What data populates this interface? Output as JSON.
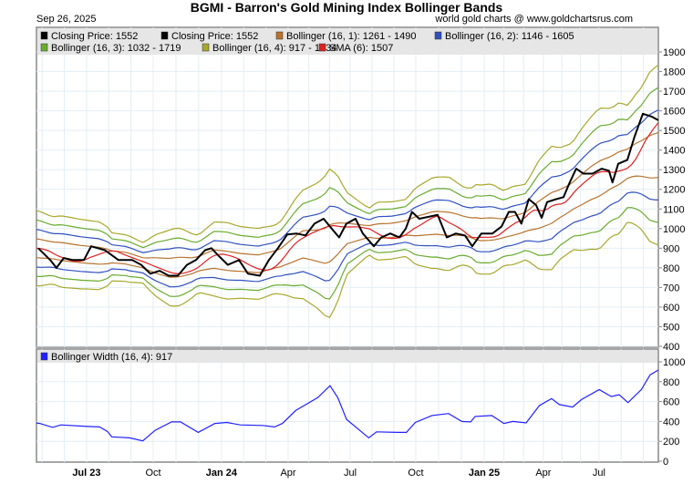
{
  "title": "BGMI - Barron's Gold Mining Index Bollinger Bands",
  "date": "Sep 26, 2025",
  "credit": "world gold charts @ www.goldchartsrus.com",
  "chart_data": [
    {
      "type": "line",
      "title": "BGMI - Barron's Gold Mining Index Bollinger Bands",
      "x_unit": "months since May 2023",
      "xlim": [
        0,
        28.07
      ],
      "ylim": [
        400,
        1950
      ],
      "yticks": [
        400,
        500,
        600,
        700,
        800,
        900,
        1000,
        1100,
        1200,
        1300,
        1400,
        1500,
        1600,
        1700,
        1800,
        1900
      ],
      "xticks": [
        {
          "label": "Jul 23",
          "t": 2.26,
          "bold": true
        },
        {
          "label": "Oct",
          "t": 5.27,
          "bold": false
        },
        {
          "label": "Jan 24",
          "t": 8.35,
          "bold": true
        },
        {
          "label": "Apr",
          "t": 11.36,
          "bold": false
        },
        {
          "label": "Jul",
          "t": 14.16,
          "bold": false
        },
        {
          "label": "Oct",
          "t": 17.12,
          "bold": false
        },
        {
          "label": "Jan 25",
          "t": 20.21,
          "bold": true
        },
        {
          "label": "Apr",
          "t": 22.88,
          "bold": false
        },
        {
          "label": "Jul",
          "t": 25.39,
          "bold": false
        }
      ],
      "legend": [
        {
          "label": "Closing Price: 1552",
          "color": "#000000"
        },
        {
          "label": "Closing Price: 1552",
          "color": "#000000"
        },
        {
          "label": "Bollinger (16, 1): 1261 - 1490",
          "color": "#b8732e",
          "k": 1
        },
        {
          "label": "Bollinger (16, 2): 1146 - 1605",
          "color": "#3050c0",
          "k": 2
        },
        {
          "label": "Bollinger (16, 3): 1032 - 1719",
          "color": "#6aab2e",
          "k": 3
        },
        {
          "label": "Bollinger (16, 4): 917 - 1834",
          "color": "#a8a82c",
          "k": 4
        },
        {
          "label": "SMA (6): 1507",
          "color": "#e02020"
        }
      ],
      "closing_price": [
        [
          0.08,
          900
        ],
        [
          0.62,
          840
        ],
        [
          0.9,
          800
        ],
        [
          1.23,
          850
        ],
        [
          1.65,
          840
        ],
        [
          2.14,
          840
        ],
        [
          2.47,
          910
        ],
        [
          3.09,
          890
        ],
        [
          3.7,
          840
        ],
        [
          4.32,
          840
        ],
        [
          4.73,
          815
        ],
        [
          5.14,
          770
        ],
        [
          5.56,
          785
        ],
        [
          5.97,
          760
        ],
        [
          6.38,
          760
        ],
        [
          6.79,
          815
        ],
        [
          7.2,
          840
        ],
        [
          7.61,
          890
        ],
        [
          7.9,
          900
        ],
        [
          8.23,
          860
        ],
        [
          8.64,
          815
        ],
        [
          9.14,
          840
        ],
        [
          9.55,
          770
        ],
        [
          10.08,
          760
        ],
        [
          10.49,
          840
        ],
        [
          10.9,
          900
        ],
        [
          11.32,
          970
        ],
        [
          11.73,
          975
        ],
        [
          12.14,
          965
        ],
        [
          12.55,
          1025
        ],
        [
          12.96,
          1050
        ],
        [
          13.25,
          1010
        ],
        [
          13.66,
          955
        ],
        [
          13.99,
          1025
        ],
        [
          14.4,
          1050
        ],
        [
          14.73,
          975
        ],
        [
          15.23,
          910
        ],
        [
          15.56,
          955
        ],
        [
          15.97,
          975
        ],
        [
          16.38,
          955
        ],
        [
          16.67,
          1000
        ],
        [
          16.95,
          1085
        ],
        [
          17.28,
          1050
        ],
        [
          17.7,
          1060
        ],
        [
          18.11,
          1070
        ],
        [
          18.52,
          955
        ],
        [
          18.93,
          975
        ],
        [
          19.34,
          965
        ],
        [
          19.67,
          910
        ],
        [
          20.08,
          975
        ],
        [
          20.58,
          975
        ],
        [
          20.99,
          1010
        ],
        [
          21.32,
          1085
        ],
        [
          21.6,
          1085
        ],
        [
          21.89,
          1025
        ],
        [
          22.22,
          1150
        ],
        [
          22.55,
          1120
        ],
        [
          22.8,
          1055
        ],
        [
          23.05,
          1135
        ],
        [
          23.46,
          1150
        ],
        [
          23.79,
          1160
        ],
        [
          24.07,
          1235
        ],
        [
          24.36,
          1305
        ],
        [
          24.69,
          1280
        ],
        [
          25.1,
          1280
        ],
        [
          25.51,
          1305
        ],
        [
          25.84,
          1295
        ],
        [
          26.0,
          1235
        ],
        [
          26.26,
          1330
        ],
        [
          26.67,
          1350
        ],
        [
          27.0,
          1470
        ],
        [
          27.37,
          1585
        ],
        [
          27.78,
          1570
        ],
        [
          28.07,
          1552
        ]
      ],
      "bollinger_mid": [
        [
          0,
          900
        ],
        [
          2,
          870
        ],
        [
          4,
          850
        ],
        [
          5,
          820
        ],
        [
          6,
          800
        ],
        [
          7,
          810
        ],
        [
          8,
          845
        ],
        [
          9,
          830
        ],
        [
          10,
          820
        ],
        [
          11,
          850
        ],
        [
          12,
          920
        ],
        [
          13,
          910
        ],
        [
          14,
          975
        ],
        [
          15,
          985
        ],
        [
          16,
          990
        ],
        [
          17,
          1010
        ],
        [
          18,
          1030
        ],
        [
          19,
          1020
        ],
        [
          20,
          995
        ],
        [
          21,
          1000
        ],
        [
          22,
          1030
        ],
        [
          23,
          1090
        ],
        [
          24,
          1150
        ],
        [
          25,
          1230
        ],
        [
          26,
          1290
        ],
        [
          27,
          1350
        ],
        [
          28.07,
          1375
        ]
      ]
    },
    {
      "type": "line",
      "title": "Bollinger Width (16, 4): 917",
      "legend": [
        {
          "label": "Bollinger Width (16, 4): 917",
          "color": "#2020ff"
        }
      ],
      "ylim": [
        0,
        1000
      ],
      "yticks": [
        0,
        200,
        400,
        600,
        800,
        1000
      ],
      "values": [
        [
          0,
          385
        ],
        [
          0.15,
          380
        ],
        [
          0.73,
          340
        ],
        [
          1.1,
          365
        ],
        [
          2.3,
          350
        ],
        [
          2.85,
          345
        ],
        [
          3.2,
          300
        ],
        [
          3.4,
          245
        ],
        [
          4.2,
          235
        ],
        [
          4.8,
          205
        ],
        [
          5.35,
          310
        ],
        [
          6.1,
          395
        ],
        [
          6.5,
          395
        ],
        [
          7.3,
          290
        ],
        [
          8.05,
          380
        ],
        [
          8.6,
          390
        ],
        [
          9.2,
          365
        ],
        [
          10.2,
          360
        ],
        [
          10.75,
          345
        ],
        [
          11.1,
          380
        ],
        [
          11.7,
          510
        ],
        [
          12.7,
          640
        ],
        [
          13.25,
          760
        ],
        [
          13.6,
          640
        ],
        [
          14.0,
          420
        ],
        [
          15.0,
          235
        ],
        [
          15.35,
          295
        ],
        [
          16.3,
          290
        ],
        [
          16.7,
          290
        ],
        [
          17.1,
          390
        ],
        [
          17.85,
          460
        ],
        [
          18.6,
          480
        ],
        [
          19.2,
          400
        ],
        [
          19.6,
          395
        ],
        [
          19.8,
          450
        ],
        [
          20.55,
          460
        ],
        [
          21.1,
          380
        ],
        [
          21.5,
          400
        ],
        [
          22.1,
          385
        ],
        [
          22.7,
          560
        ],
        [
          23.25,
          630
        ],
        [
          23.6,
          570
        ],
        [
          24.2,
          545
        ],
        [
          24.6,
          620
        ],
        [
          25.4,
          720
        ],
        [
          25.95,
          650
        ],
        [
          26.3,
          670
        ],
        [
          26.7,
          590
        ],
        [
          27.3,
          720
        ],
        [
          27.7,
          870
        ],
        [
          28.07,
          917
        ]
      ]
    }
  ]
}
